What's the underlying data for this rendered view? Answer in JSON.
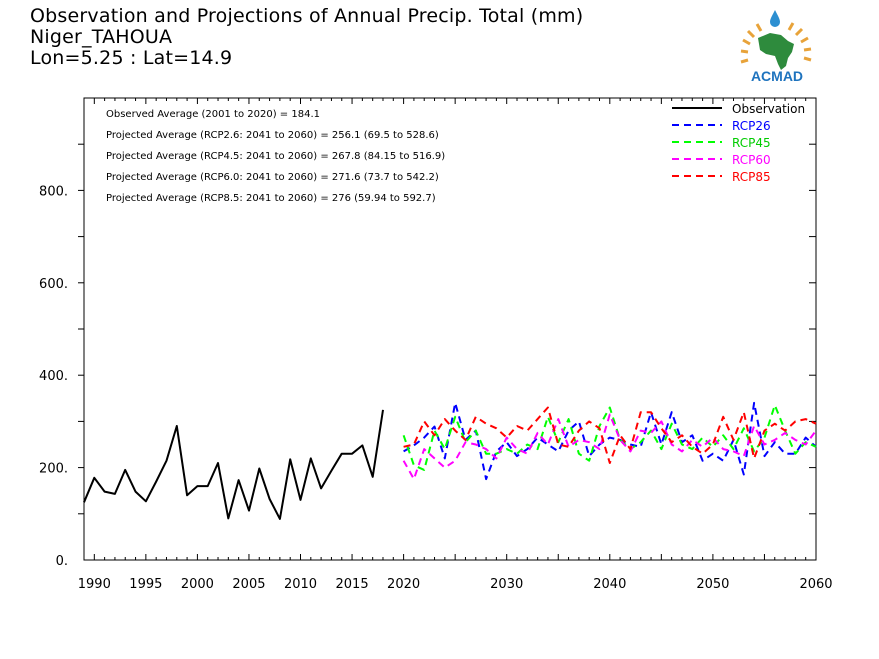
{
  "title": {
    "line1": "Observation and Projections of Annual Precip. Total (mm)",
    "line2": "Niger_TAHOUA",
    "line3": "Lon=5.25 : Lat=14.9"
  },
  "logo": {
    "text": "ACMAD"
  },
  "annotations": [
    "Observed Average (2001 to 2020) = 184.1",
    "Projected Average (RCP2.6: 2041 to 2060) = 256.1 (69.5 to 528.6)",
    "Projected Average (RCP4.5: 2041 to 2060) = 267.8 (84.15 to 516.9)",
    "Projected Average (RCP6.0: 2041 to 2060) = 271.6 (73.7 to 542.2)",
    "Projected Average (RCP8.5: 2041 to 2060) = 276 (59.94 to 592.7)"
  ],
  "chart_data": {
    "type": "line",
    "xlim": [
      1989,
      2060
    ],
    "ylim": [
      0,
      1000
    ],
    "y_ticks": [
      0,
      200,
      400,
      600,
      800
    ],
    "y_tick_labels": [
      "0.",
      "200.",
      "400.",
      "600.",
      "800."
    ],
    "x_ticks_left": [
      1990,
      1995,
      2000,
      2005,
      2010,
      2015,
      2020
    ],
    "x_ticks_right": [
      2020,
      2030,
      2040,
      2050,
      2060
    ],
    "x_tick_labels_left": [
      "1990",
      "1995",
      "2000",
      "2005",
      "2010",
      "2015",
      "2020"
    ],
    "x_tick_labels_right": [
      "2020",
      "2030",
      "2040",
      "2050",
      "2060"
    ],
    "legend_position": "top-right",
    "series": [
      {
        "name": "Observation",
        "color": "#000000",
        "dashed": false,
        "x": [
          1989,
          1990,
          1991,
          1992,
          1993,
          1994,
          1995,
          1996,
          1997,
          1998,
          1999,
          2000,
          2001,
          2002,
          2003,
          2004,
          2005,
          2006,
          2007,
          2008,
          2009,
          2010,
          2011,
          2012,
          2013,
          2014,
          2015,
          2016,
          2017,
          2018,
          2019,
          2020
        ],
        "y": [
          125,
          178,
          148,
          143,
          195,
          148,
          127,
          170,
          215,
          290,
          140,
          160,
          160,
          210,
          90,
          173,
          107,
          198,
          132,
          89,
          218,
          130,
          220,
          155,
          193,
          230,
          230,
          248,
          180,
          325,
          null,
          null
        ]
      },
      {
        "name": "RCP26",
        "color": "#0000ff",
        "dashed": true,
        "x": [
          2020,
          2021,
          2022,
          2023,
          2024,
          2025,
          2026,
          2027,
          2028,
          2029,
          2030,
          2031,
          2032,
          2033,
          2034,
          2035,
          2036,
          2037,
          2038,
          2039,
          2040,
          2041,
          2042,
          2043,
          2044,
          2045,
          2046,
          2047,
          2048,
          2049,
          2050,
          2051,
          2052,
          2053,
          2054,
          2055,
          2056,
          2057,
          2058,
          2059,
          2060
        ],
        "y": [
          235,
          248,
          265,
          289,
          220,
          340,
          260,
          280,
          175,
          235,
          255,
          225,
          240,
          265,
          250,
          235,
          280,
          300,
          225,
          250,
          265,
          260,
          250,
          245,
          320,
          250,
          320,
          255,
          270,
          215,
          230,
          215,
          260,
          185,
          340,
          225,
          255,
          230,
          230,
          265,
          245
        ]
      },
      {
        "name": "RCP45",
        "color": "#00ff00",
        "dashed": true,
        "x": [
          2020,
          2021,
          2022,
          2023,
          2024,
          2025,
          2026,
          2027,
          2028,
          2029,
          2030,
          2031,
          2032,
          2033,
          2034,
          2035,
          2036,
          2037,
          2038,
          2039,
          2040,
          2041,
          2042,
          2043,
          2044,
          2045,
          2046,
          2047,
          2048,
          2049,
          2050,
          2051,
          2052,
          2053,
          2054,
          2055,
          2056,
          2057,
          2058,
          2059,
          2060
        ],
        "y": [
          270,
          205,
          195,
          280,
          240,
          310,
          255,
          280,
          230,
          230,
          240,
          230,
          250,
          240,
          310,
          255,
          305,
          230,
          215,
          290,
          330,
          260,
          240,
          255,
          280,
          240,
          295,
          250,
          240,
          265,
          245,
          270,
          240,
          285,
          235,
          265,
          335,
          280,
          230,
          255,
          245
        ]
      },
      {
        "name": "RCP60",
        "color": "#ff00ff",
        "dashed": true,
        "x": [
          2020,
          2021,
          2022,
          2023,
          2024,
          2025,
          2026,
          2027,
          2028,
          2029,
          2030,
          2031,
          2032,
          2033,
          2034,
          2035,
          2036,
          2037,
          2038,
          2039,
          2040,
          2041,
          2042,
          2043,
          2044,
          2045,
          2046,
          2047,
          2048,
          2049,
          2050,
          2051,
          2052,
          2053,
          2054,
          2055,
          2056,
          2057,
          2058,
          2059,
          2060
        ],
        "y": [
          215,
          175,
          240,
          220,
          200,
          215,
          255,
          250,
          240,
          220,
          265,
          240,
          230,
          275,
          250,
          305,
          245,
          260,
          255,
          240,
          315,
          260,
          235,
          280,
          275,
          300,
          250,
          235,
          260,
          245,
          265,
          240,
          235,
          225,
          290,
          250,
          260,
          275,
          260,
          250,
          280
        ]
      },
      {
        "name": "RCP85",
        "color": "#ff0000",
        "dashed": true,
        "x": [
          2020,
          2021,
          2022,
          2023,
          2024,
          2025,
          2026,
          2027,
          2028,
          2029,
          2030,
          2031,
          2032,
          2033,
          2034,
          2035,
          2036,
          2037,
          2038,
          2039,
          2040,
          2041,
          2042,
          2043,
          2044,
          2045,
          2046,
          2047,
          2048,
          2049,
          2050,
          2051,
          2052,
          2053,
          2054,
          2055,
          2056,
          2057,
          2058,
          2059,
          2060
        ],
        "y": [
          245,
          250,
          300,
          270,
          305,
          280,
          260,
          310,
          295,
          285,
          265,
          290,
          280,
          305,
          330,
          250,
          245,
          280,
          300,
          285,
          210,
          270,
          240,
          320,
          320,
          285,
          255,
          270,
          245,
          230,
          250,
          310,
          260,
          320,
          220,
          280,
          295,
          280,
          300,
          305,
          295
        ]
      }
    ]
  }
}
